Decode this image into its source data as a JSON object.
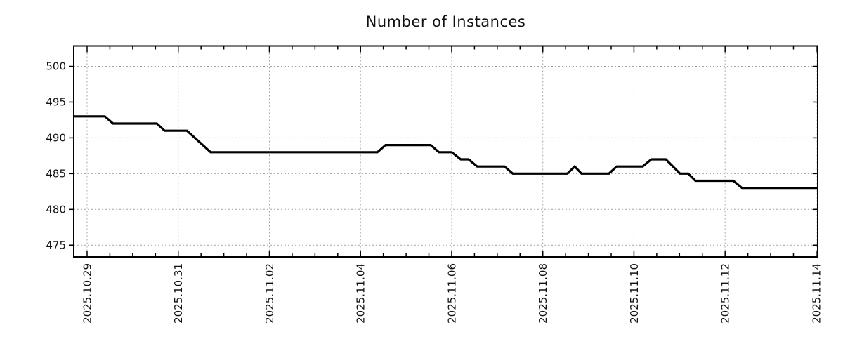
{
  "title": "Number of Instances",
  "colors": {
    "line": "#000000",
    "grid": "#a3a3a3",
    "border": "#000000",
    "text": "#111111",
    "background": "#ffffff"
  },
  "chart_data": {
    "type": "line",
    "title": "Number of Instances",
    "style": "step-like time series, black solid line, dotted grid, boxed axes",
    "legend": "none",
    "grid": true,
    "x_axis": {
      "day0_date": "2025.10.29",
      "tick_labels": [
        "2025.10.29",
        "2025.10.31",
        "2025.11.02",
        "2025.11.04",
        "2025.11.06",
        "2025.11.08",
        "2025.11.10",
        "2025.11.12",
        "2025.11.14"
      ],
      "major_tick_interval_days": 2,
      "minor_tick_interval_days": 0.5,
      "domain_days": [
        -0.29,
        16.03
      ],
      "label_rotation_deg": 90
    },
    "y_axis": {
      "tick_labels": [
        500,
        495,
        490,
        485,
        480,
        475
      ],
      "range": [
        473.3,
        502.9
      ]
    },
    "points_day_value": [
      [
        -0.29,
        493
      ],
      [
        0.39,
        493
      ],
      [
        0.57,
        492
      ],
      [
        1.53,
        492
      ],
      [
        1.7,
        491
      ],
      [
        2.19,
        491
      ],
      [
        2.71,
        488
      ],
      [
        6.37,
        488
      ],
      [
        6.55,
        489
      ],
      [
        7.54,
        489
      ],
      [
        7.72,
        488
      ],
      [
        8.0,
        488
      ],
      [
        8.2,
        487
      ],
      [
        8.37,
        487
      ],
      [
        8.56,
        486
      ],
      [
        9.16,
        486
      ],
      [
        9.34,
        485
      ],
      [
        10.54,
        485
      ],
      [
        10.7,
        486
      ],
      [
        10.85,
        485
      ],
      [
        11.45,
        485
      ],
      [
        11.62,
        486
      ],
      [
        12.19,
        486
      ],
      [
        12.38,
        487
      ],
      [
        12.7,
        487
      ],
      [
        13.01,
        485
      ],
      [
        13.19,
        485
      ],
      [
        13.35,
        484
      ],
      [
        14.18,
        484
      ],
      [
        14.37,
        483
      ],
      [
        16.03,
        483
      ]
    ]
  }
}
